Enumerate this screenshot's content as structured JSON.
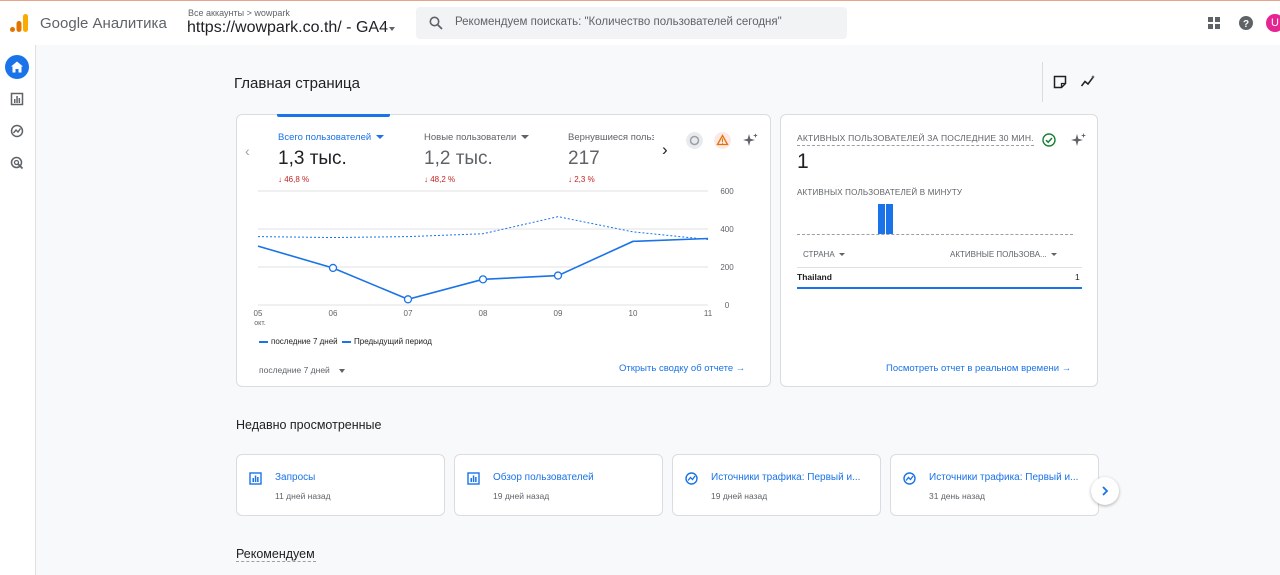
{
  "app": {
    "name": "Google Аналитика",
    "account_crumb": "Все аккаунты",
    "account_name": "wowpark",
    "property": "https://wowpark.co.th/ - GA4",
    "user_initial": "U"
  },
  "search": {
    "placeholder": "Рекомендуем поискать: \"Количество пользователей сегодня\""
  },
  "rail": {
    "items": [
      {
        "name": "home-icon",
        "active": true
      },
      {
        "name": "reports-icon",
        "active": false
      },
      {
        "name": "explore-icon",
        "active": false
      },
      {
        "name": "advertising-icon",
        "active": false
      }
    ]
  },
  "page": {
    "title": "Главная страница"
  },
  "overview": {
    "metrics": [
      {
        "label": "Всего пользователей",
        "value": "1,3 тыс.",
        "delta": "↓ 46,8 %",
        "selected": true
      },
      {
        "label": "Новые пользователи",
        "value": "1,2 тыс.",
        "delta": "↓ 48,2 %",
        "selected": false
      },
      {
        "label": "Вернувшиеся пользователи",
        "value": "217",
        "delta": "↓ 2,3 %",
        "selected": false
      }
    ],
    "legend": {
      "current": "последние 7 дней",
      "previous": "Предыдущий период"
    },
    "date_range": "последние 7 дней",
    "link": "Открыть сводку об отчете"
  },
  "chart_data": {
    "type": "line",
    "categories": [
      "05",
      "06",
      "07",
      "08",
      "09",
      "10",
      "11"
    ],
    "first_category_sub": "окт.",
    "series": [
      {
        "name": "последние 7 дней",
        "values": [
          310,
          195,
          30,
          135,
          155,
          335,
          350
        ],
        "style": "solid"
      },
      {
        "name": "Предыдущий период",
        "values": [
          360,
          355,
          360,
          375,
          465,
          385,
          345
        ],
        "style": "dashed"
      }
    ],
    "y_ticks": [
      600,
      400,
      200,
      0
    ],
    "ylim": [
      0,
      600
    ],
    "grid": true,
    "color": "#1a73e8"
  },
  "realtime": {
    "title": "АКТИВНЫХ ПОЛЬЗОВАТЕЛЕЙ ЗА ПОСЛЕДНИЕ 30 МИН.",
    "value": "1",
    "per_minute_label": "АКТИВНЫХ ПОЛЬЗОВАТЕЛЕЙ В МИНУТУ",
    "per_minute_bars": [
      1,
      1
    ],
    "col_country": "СТРАНА",
    "col_active": "АКТИВНЫЕ ПОЛЬЗОВА...",
    "rows": [
      {
        "country": "Thailand",
        "active": "1"
      }
    ],
    "link": "Посмотреть отчет в реальном времени"
  },
  "recent": {
    "title": "Недавно просмотренные",
    "items": [
      {
        "title": "Запросы",
        "sub": "11 дней назад",
        "icon": "bar-chart-icon"
      },
      {
        "title": "Обзор пользователей",
        "sub": "19 дней назад",
        "icon": "bar-chart-icon"
      },
      {
        "title": "Источники трафика: Первый и...",
        "sub": "19 дней назад",
        "icon": "trend-icon"
      },
      {
        "title": "Источники трафика: Первый и...",
        "sub": "31 день назад",
        "icon": "trend-icon"
      }
    ]
  },
  "recommend": {
    "title": "Рекомендуем"
  }
}
